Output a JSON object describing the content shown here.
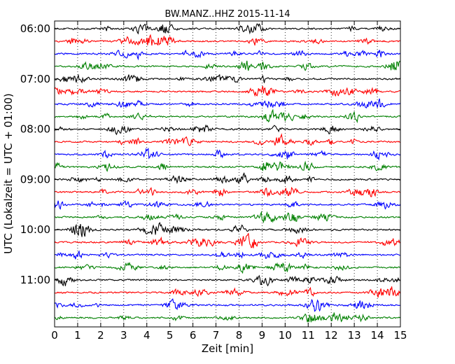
{
  "chart_data": {
    "type": "line",
    "title": "BW.MANZ..HHZ 2015-11-14",
    "xlabel": "Zeit  [min]",
    "ylabel": "UTC (Lokalzeit = UTC + 01:00)",
    "xlim": [
      0,
      15
    ],
    "x_ticks": [
      "0",
      "1",
      "2",
      "3",
      "4",
      "5",
      "6",
      "7",
      "8",
      "9",
      "10",
      "11",
      "12",
      "13",
      "14",
      "15"
    ],
    "y_ticks": [
      "06:00",
      "07:00",
      "08:00",
      "09:00",
      "10:00",
      "11:00"
    ],
    "y_tick_rows": [
      0,
      4,
      8,
      12,
      16,
      20
    ],
    "grid": "vertical dotted",
    "colors": [
      "#000000",
      "#ff0000",
      "#0000ff",
      "#008000"
    ],
    "series": [
      {
        "start": "06:00",
        "color": "#000000"
      },
      {
        "start": "06:15",
        "color": "#ff0000"
      },
      {
        "start": "06:30",
        "color": "#0000ff"
      },
      {
        "start": "06:45",
        "color": "#008000"
      },
      {
        "start": "07:00",
        "color": "#000000"
      },
      {
        "start": "07:15",
        "color": "#ff0000"
      },
      {
        "start": "07:30",
        "color": "#0000ff"
      },
      {
        "start": "07:45",
        "color": "#008000"
      },
      {
        "start": "08:00",
        "color": "#000000"
      },
      {
        "start": "08:15",
        "color": "#ff0000"
      },
      {
        "start": "08:30",
        "color": "#0000ff"
      },
      {
        "start": "08:45",
        "color": "#008000"
      },
      {
        "start": "09:00",
        "color": "#000000"
      },
      {
        "start": "09:15",
        "color": "#ff0000"
      },
      {
        "start": "09:30",
        "color": "#0000ff"
      },
      {
        "start": "09:45",
        "color": "#008000"
      },
      {
        "start": "10:00",
        "color": "#000000"
      },
      {
        "start": "10:15",
        "color": "#ff0000"
      },
      {
        "start": "10:30",
        "color": "#0000ff"
      },
      {
        "start": "10:45",
        "color": "#008000"
      },
      {
        "start": "11:00",
        "color": "#000000"
      },
      {
        "start": "11:15",
        "color": "#ff0000"
      },
      {
        "start": "11:30",
        "color": "#0000ff"
      },
      {
        "start": "11:45",
        "color": "#008000"
      }
    ]
  }
}
